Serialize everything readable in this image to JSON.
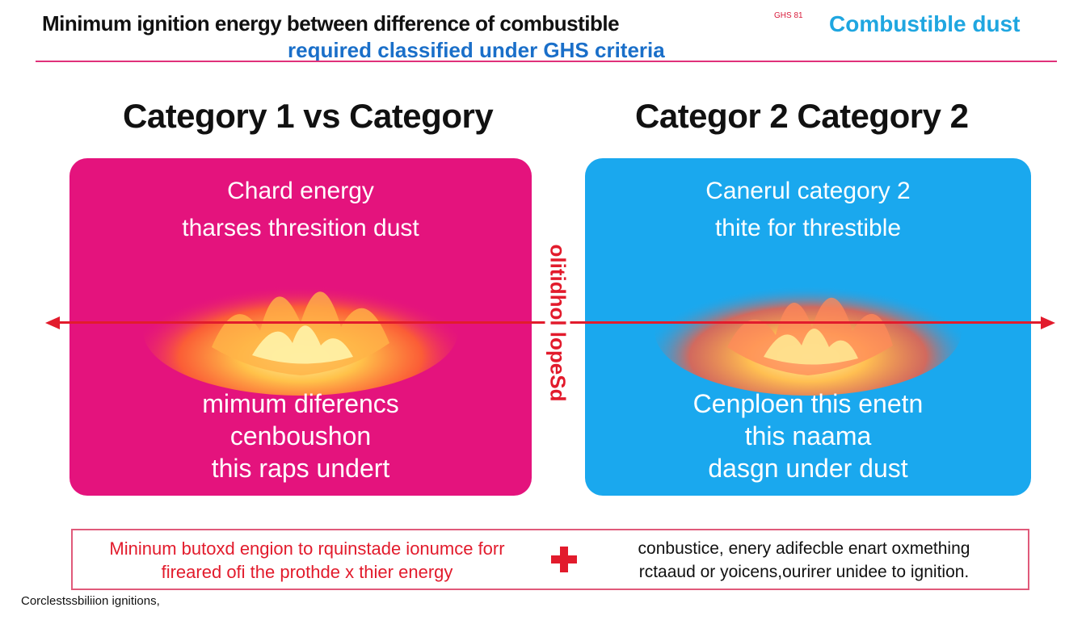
{
  "header": {
    "title": "Minimum ignition energy between difference of combustible",
    "note": "GHS 81",
    "title_right": "Combustible dust",
    "subtitle": "required classified under GHS criteria"
  },
  "categories": {
    "left_heading": "Category 1  vs Category",
    "right_heading": "Categor 2 Category 2"
  },
  "panel_left": {
    "line1": "Chard energy",
    "line2": "tharses thresition dust",
    "bottom1": "mimum diferencs",
    "bottom2": "cenboushon",
    "bottom3": "this raps undert",
    "color": "#e4137d"
  },
  "panel_right": {
    "line1": "Canerul category 2",
    "line2": "thite for threstible",
    "bottom1": "Cenploen this enetn",
    "bottom2": "this naama",
    "bottom3": "dasgn under dust",
    "color": "#1aa8ee"
  },
  "axis": {
    "vertical_label": "olitidhol lopeSd",
    "color": "#e21b2c"
  },
  "note": {
    "left_line1": "Mininum butoxd engion to rquinstade ionumce forr",
    "left_line2": "fireared ofi the prothde x thier energy",
    "right_line1": "conbustice, enery adifecble enart oxmething",
    "right_line2": "rctaaud or yoicens,ourirer unidee to ignition."
  },
  "footer": {
    "text": "Corclestssbiliion ignitions,"
  },
  "icons": {
    "flame_left": "flame-icon",
    "flame_right": "flame-icon",
    "plus": "plus-icon"
  }
}
